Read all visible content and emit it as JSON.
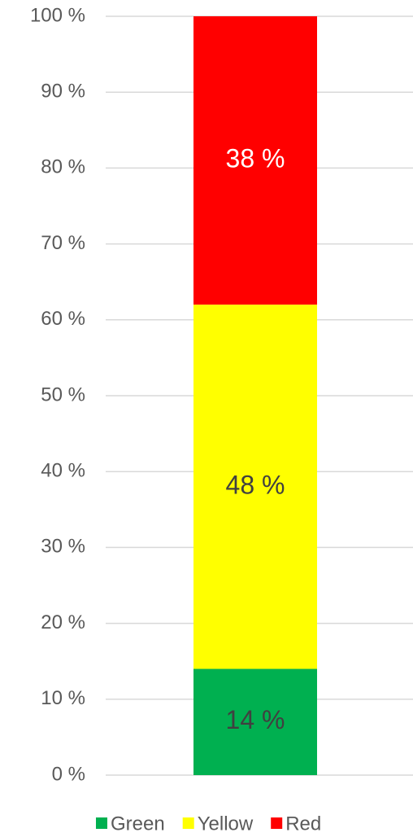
{
  "chart_data": {
    "type": "stacked_bar",
    "categories": [
      null
    ],
    "series": [
      {
        "name": "Green",
        "color": "#00b050",
        "label_color": "#404040",
        "values": [
          14
        ],
        "value_labels": [
          "14 %"
        ]
      },
      {
        "name": "Yellow",
        "color": "#ffff00",
        "label_color": "#404040",
        "values": [
          48
        ],
        "value_labels": [
          "48 %"
        ]
      },
      {
        "name": "Red",
        "color": "#ff0000",
        "label_color": "#ffffff",
        "values": [
          38
        ],
        "value_labels": [
          "38 %"
        ]
      }
    ],
    "ylim": [
      0,
      100
    ],
    "yticks": [
      {
        "value": 0,
        "label": "0 %"
      },
      {
        "value": 10,
        "label": "10 %"
      },
      {
        "value": 20,
        "label": "20 %"
      },
      {
        "value": 30,
        "label": "30 %"
      },
      {
        "value": 40,
        "label": "40 %"
      },
      {
        "value": 50,
        "label": "50 %"
      },
      {
        "value": 60,
        "label": "60 %"
      },
      {
        "value": 70,
        "label": "70 %"
      },
      {
        "value": 80,
        "label": "80 %"
      },
      {
        "value": 90,
        "label": "90 %"
      },
      {
        "value": 100,
        "label": "100 %"
      }
    ],
    "grid": true,
    "legend": "bottom"
  }
}
